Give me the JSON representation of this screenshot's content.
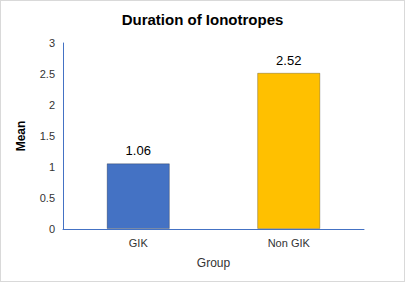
{
  "chart_data": {
    "type": "bar",
    "title": "Duration of Ionotropes",
    "x_label": "Group",
    "y_label": "Mean",
    "categories": [
      "GIK",
      "Non GIK"
    ],
    "values": [
      1.06,
      2.52
    ],
    "colors": [
      "#4472c4",
      "#ffc000"
    ],
    "ylim": [
      0,
      3
    ],
    "yticks": [
      0,
      0.5,
      1,
      1.5,
      2,
      2.5,
      3
    ],
    "grid": false,
    "data_labels": true
  }
}
